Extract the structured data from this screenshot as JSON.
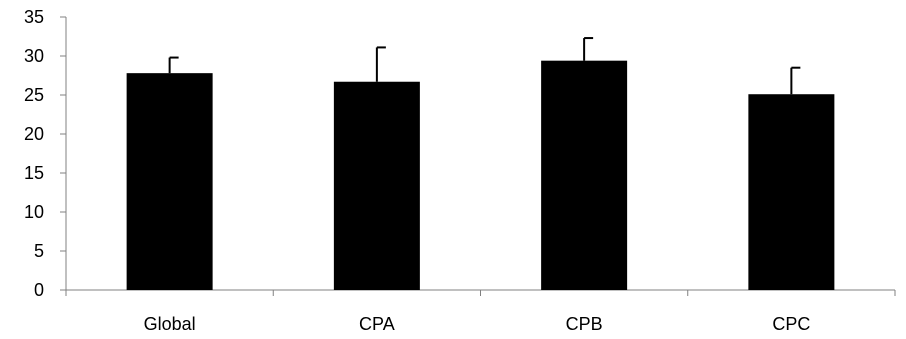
{
  "chart_data": {
    "type": "bar",
    "title": "",
    "xlabel": "",
    "ylabel": "",
    "categories": [
      "Global",
      "CPA",
      "CPB",
      "CPC"
    ],
    "values": [
      27.8,
      26.7,
      29.4,
      25.1
    ],
    "error_plus": [
      2.0,
      4.4,
      2.9,
      3.4
    ],
    "ylim": [
      0,
      35
    ],
    "yticks": [
      "0",
      "5",
      "10",
      "15",
      "20",
      "25",
      "30",
      "35"
    ],
    "grid": false,
    "legend": "none",
    "colors": {
      "bar": "#000000",
      "axis": "#808080",
      "error_bar": "#000000"
    }
  }
}
